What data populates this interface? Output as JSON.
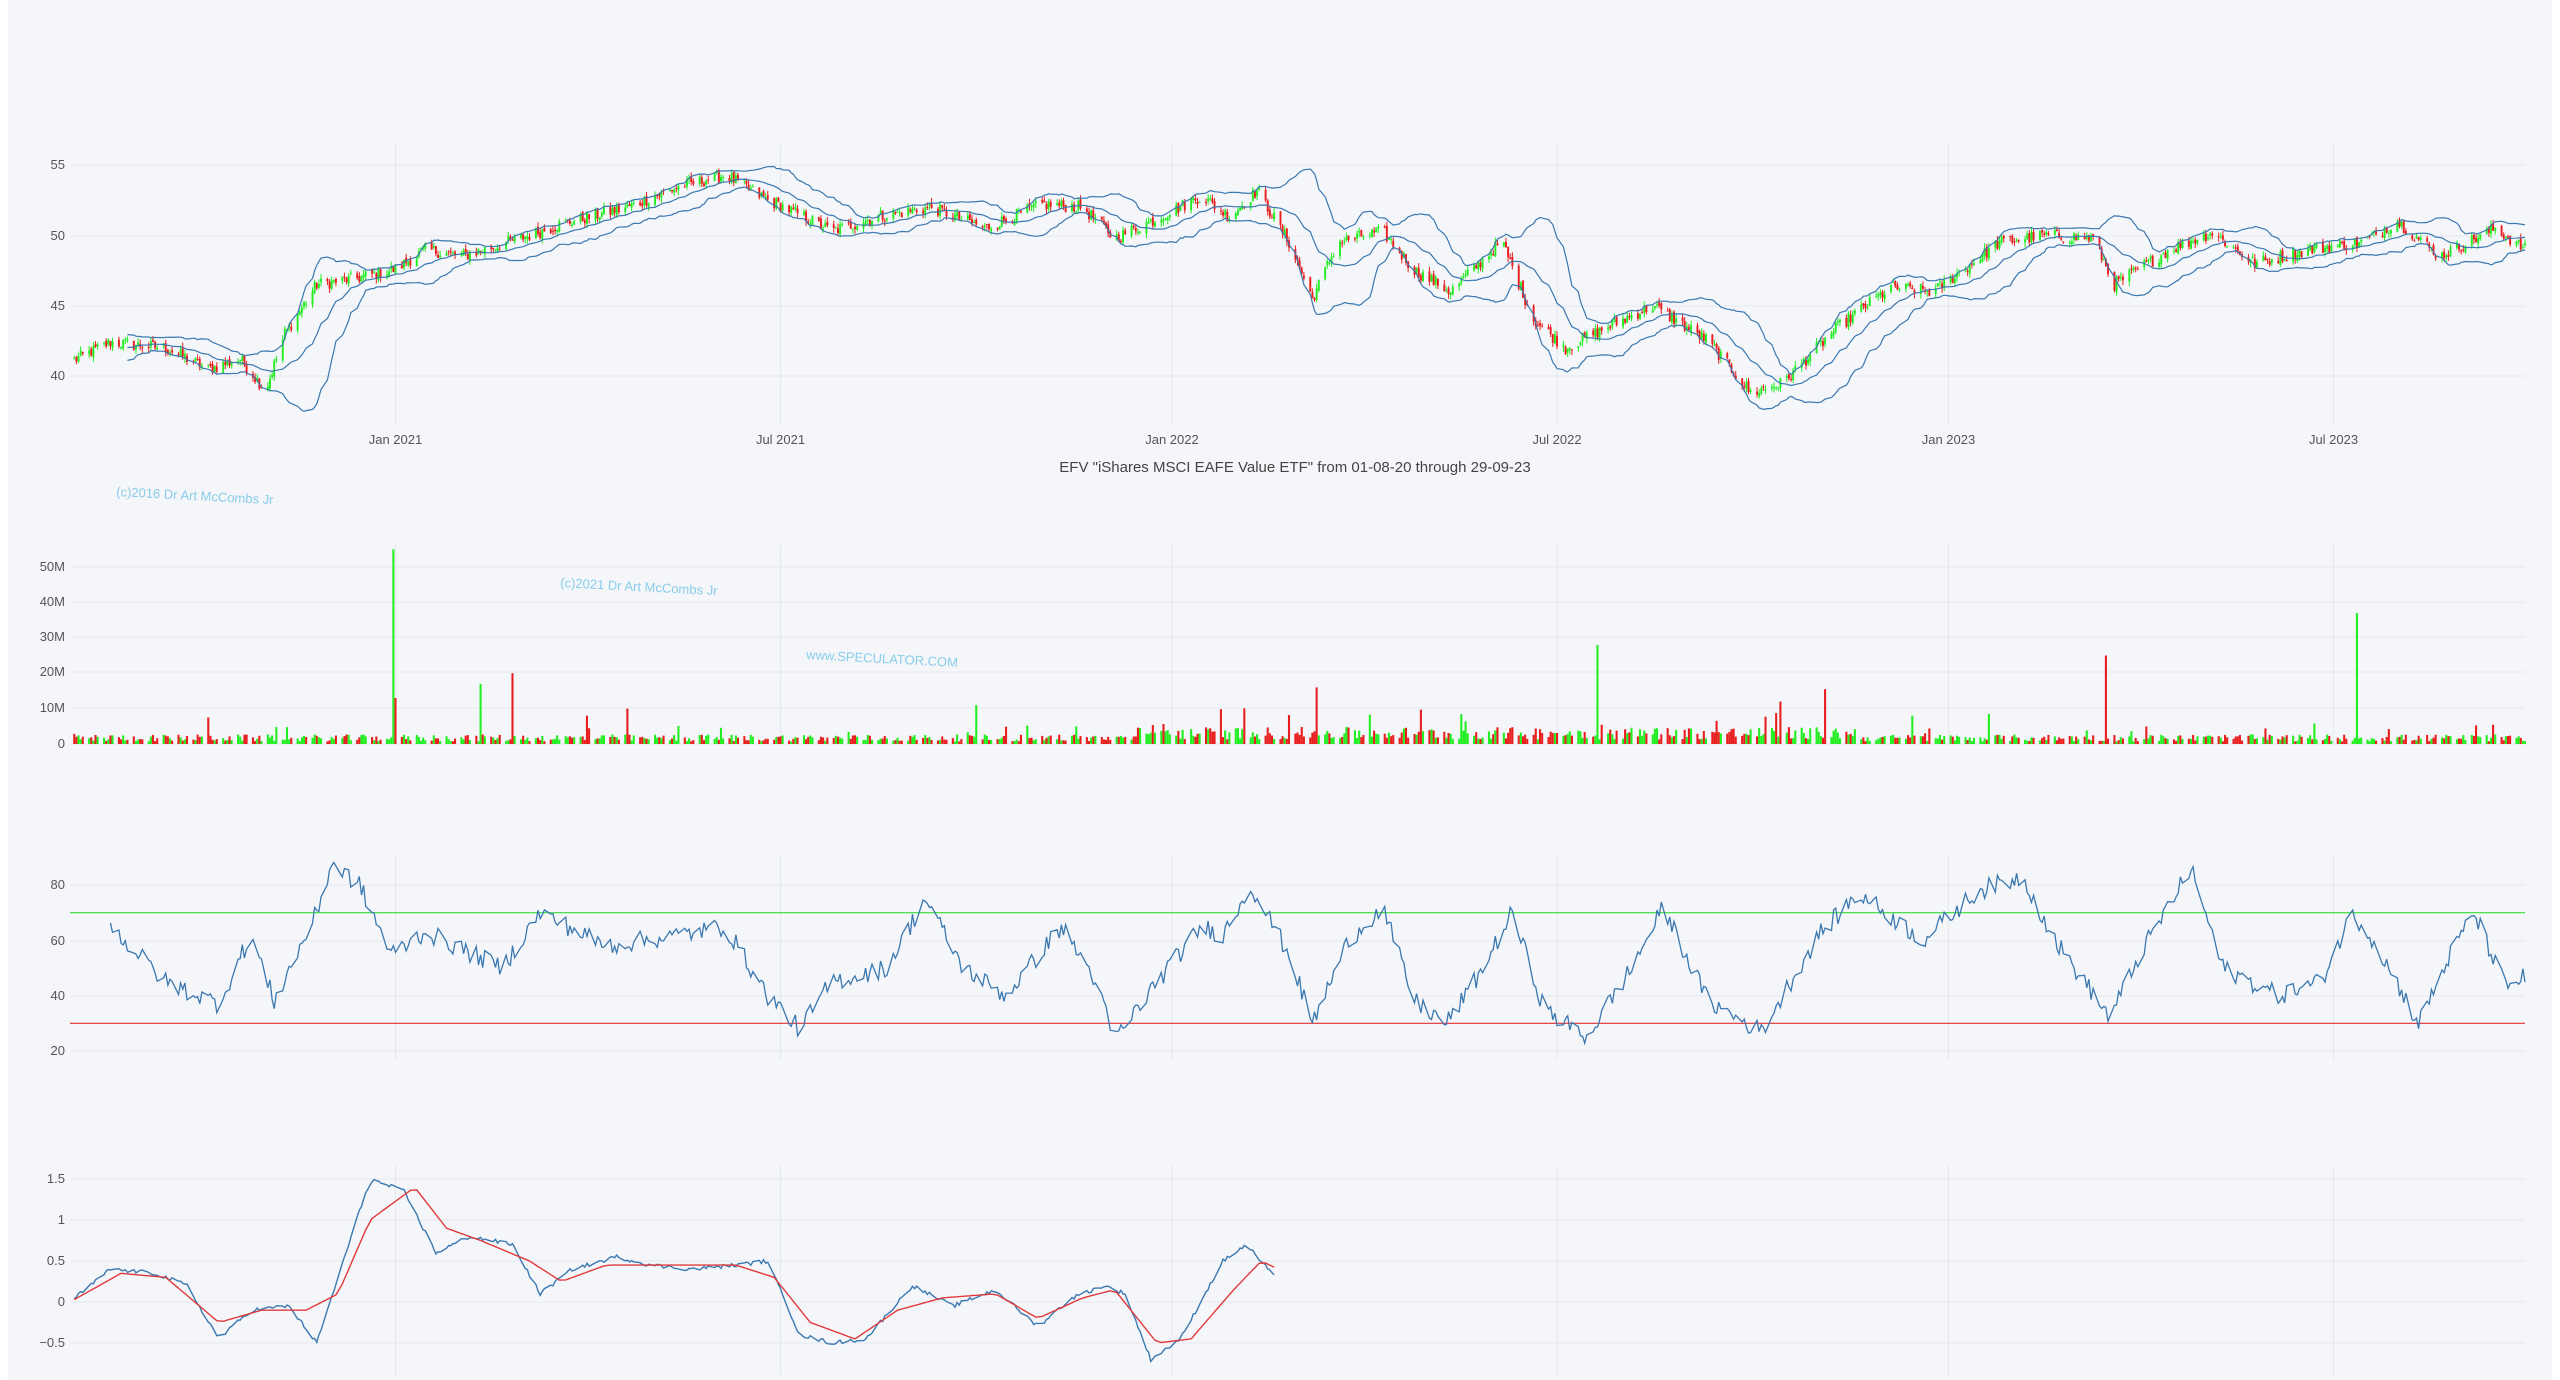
{
  "chart_data": {
    "type": "candlestick",
    "title": "EFV \"iShares MSCI EAFE Value ETF\" from 01-08-20 through 29-09-23",
    "x_ticks": [
      "Jan 2021",
      "Jul 2021",
      "Jan 2022",
      "Jul 2022",
      "Jan 2023",
      "Jul 2023"
    ],
    "watermarks": [
      "(c)2016 Dr Art McCombs Jr",
      "(c)2021 Dr Art McCombs Jr",
      "www.SPECULATOR.COM"
    ],
    "colors": {
      "up": "#22ee22",
      "down": "#e81e1e",
      "line": "#3a78b0",
      "signal": "#e03a3a",
      "band_upper": "#33dd33",
      "band_lower": "#e03030"
    },
    "panels": [
      {
        "id": "price",
        "type": "candlestick",
        "y_ticks": [
          "55",
          "50",
          "45",
          "40"
        ],
        "ylim": [
          36,
          56
        ],
        "overlays": [
          "bollinger-upper",
          "bollinger-middle",
          "bollinger-lower"
        ],
        "close_waypoints": [
          [
            "2020-08-01",
            41
          ],
          [
            "2020-08-20",
            42.4
          ],
          [
            "2020-09-15",
            42
          ],
          [
            "2020-10-05",
            40.5
          ],
          [
            "2020-10-20",
            41.2
          ],
          [
            "2020-11-01",
            39
          ],
          [
            "2020-11-10",
            43
          ],
          [
            "2020-11-25",
            46.5
          ],
          [
            "2020-12-15",
            47
          ],
          [
            "2021-01-01",
            47.6
          ],
          [
            "2021-01-15",
            49
          ],
          [
            "2021-02-01",
            48.5
          ],
          [
            "2021-02-25",
            49.6
          ],
          [
            "2021-03-20",
            50.8
          ],
          [
            "2021-04-20",
            52
          ],
          [
            "2021-05-15",
            53.5
          ],
          [
            "2021-06-05",
            54.3
          ],
          [
            "2021-06-25",
            52.5
          ],
          [
            "2021-07-10",
            51.5
          ],
          [
            "2021-07-25",
            50.3
          ],
          [
            "2021-08-15",
            51.3
          ],
          [
            "2021-09-10",
            52
          ],
          [
            "2021-10-05",
            50.5
          ],
          [
            "2021-11-01",
            52.2
          ],
          [
            "2021-11-20",
            52
          ],
          [
            "2021-12-05",
            49.8
          ],
          [
            "2021-12-25",
            51.2
          ],
          [
            "2022-01-15",
            52.8
          ],
          [
            "2022-01-28",
            51.3
          ],
          [
            "2022-02-10",
            53.2
          ],
          [
            "2022-02-25",
            49.5
          ],
          [
            "2022-03-08",
            45.5
          ],
          [
            "2022-03-20",
            49.5
          ],
          [
            "2022-04-10",
            50.3
          ],
          [
            "2022-04-25",
            47.5
          ],
          [
            "2022-05-12",
            46
          ],
          [
            "2022-06-05",
            49.6
          ],
          [
            "2022-06-20",
            44
          ],
          [
            "2022-07-05",
            42
          ],
          [
            "2022-07-25",
            43.5
          ],
          [
            "2022-08-15",
            45
          ],
          [
            "2022-09-10",
            42.5
          ],
          [
            "2022-09-30",
            38.8
          ],
          [
            "2022-10-15",
            39.5
          ],
          [
            "2022-11-10",
            43.5
          ],
          [
            "2022-12-05",
            46.3
          ],
          [
            "2022-12-25",
            46
          ],
          [
            "2023-01-25",
            49.5
          ],
          [
            "2023-02-15",
            50
          ],
          [
            "2023-03-10",
            49.8
          ],
          [
            "2023-03-20",
            46.5
          ],
          [
            "2023-04-15",
            49
          ],
          [
            "2023-05-05",
            50.2
          ],
          [
            "2023-05-25",
            48
          ],
          [
            "2023-06-20",
            49
          ],
          [
            "2023-07-15",
            49.5
          ],
          [
            "2023-07-31",
            51
          ],
          [
            "2023-08-20",
            48.5
          ],
          [
            "2023-09-15",
            50.5
          ],
          [
            "2023-09-29",
            49
          ]
        ]
      },
      {
        "id": "volume",
        "type": "bar",
        "y_ticks": [
          "50M",
          "40M",
          "30M",
          "20M",
          "10M",
          "0"
        ],
        "ylim": [
          0,
          52
        ],
        "y_unit": "M",
        "spikes": [
          [
            "2020-10-05",
            7.5,
            "down"
          ],
          [
            "2020-12-31",
            55,
            "up"
          ],
          [
            "2021-01-01",
            13,
            "down"
          ],
          [
            "2021-02-10",
            17,
            "up"
          ],
          [
            "2021-02-25",
            20,
            "down"
          ],
          [
            "2021-04-01",
            8,
            "down"
          ],
          [
            "2021-04-20",
            10,
            "down"
          ],
          [
            "2021-10-01",
            11,
            "up"
          ],
          [
            "2022-03-10",
            16,
            "down"
          ],
          [
            "2022-07-20",
            28,
            "up"
          ],
          [
            "2022-10-14",
            12,
            "down"
          ],
          [
            "2022-11-04",
            15.5,
            "down"
          ],
          [
            "2022-12-15",
            8,
            "up"
          ],
          [
            "2023-01-20",
            8.5,
            "up"
          ],
          [
            "2023-03-16",
            25,
            "down"
          ],
          [
            "2023-07-12",
            37,
            "up"
          ]
        ]
      },
      {
        "id": "rsi",
        "type": "line",
        "y_ticks": [
          "80",
          "60",
          "40",
          "20"
        ],
        "ylim": [
          18,
          93
        ],
        "reference_lines": [
          {
            "value": 70,
            "color": "#33dd33"
          },
          {
            "value": 30,
            "color": "#e03030"
          }
        ],
        "x_range": [
          "2020-08-20",
          "2023-09-29"
        ],
        "waypoints": [
          [
            "2020-08-20",
            65
          ],
          [
            "2020-09-15",
            45
          ],
          [
            "2020-10-10",
            37
          ],
          [
            "2020-10-25",
            62
          ],
          [
            "2020-11-05",
            38
          ],
          [
            "2020-11-25",
            70
          ],
          [
            "2020-12-02",
            88
          ],
          [
            "2020-12-15",
            80
          ],
          [
            "2020-12-30",
            55
          ],
          [
            "2021-01-15",
            63
          ],
          [
            "2021-02-20",
            50
          ],
          [
            "2021-03-10",
            70
          ],
          [
            "2021-04-10",
            58
          ],
          [
            "2021-05-15",
            62
          ],
          [
            "2021-06-05",
            65
          ],
          [
            "2021-06-25",
            40
          ],
          [
            "2021-07-10",
            28
          ],
          [
            "2021-07-25",
            45
          ],
          [
            "2021-08-20",
            50
          ],
          [
            "2021-09-07",
            75
          ],
          [
            "2021-09-25",
            50
          ],
          [
            "2021-10-15",
            40
          ],
          [
            "2021-11-10",
            65
          ],
          [
            "2021-11-25",
            47
          ],
          [
            "2021-12-05",
            24
          ],
          [
            "2021-12-25",
            45
          ],
          [
            "2022-01-15",
            65
          ],
          [
            "2022-01-25",
            62
          ],
          [
            "2022-02-07",
            80
          ],
          [
            "2022-02-25",
            55
          ],
          [
            "2022-03-08",
            30
          ],
          [
            "2022-03-25",
            60
          ],
          [
            "2022-04-10",
            72
          ],
          [
            "2022-04-25",
            38
          ],
          [
            "2022-05-10",
            30
          ],
          [
            "2022-05-25",
            47
          ],
          [
            "2022-06-10",
            70
          ],
          [
            "2022-06-25",
            35
          ],
          [
            "2022-07-15",
            25
          ],
          [
            "2022-08-05",
            50
          ],
          [
            "2022-08-20",
            72
          ],
          [
            "2022-09-10",
            38
          ],
          [
            "2022-10-05",
            27
          ],
          [
            "2022-11-01",
            62
          ],
          [
            "2022-11-20",
            77
          ],
          [
            "2022-12-20",
            60
          ],
          [
            "2023-01-15",
            78
          ],
          [
            "2023-02-05",
            83
          ],
          [
            "2023-02-20",
            60
          ],
          [
            "2023-03-18",
            32
          ],
          [
            "2023-04-01",
            55
          ],
          [
            "2023-04-25",
            86
          ],
          [
            "2023-05-10",
            50
          ],
          [
            "2023-06-05",
            40
          ],
          [
            "2023-06-25",
            45
          ],
          [
            "2023-07-10",
            70
          ],
          [
            "2023-07-20",
            60
          ],
          [
            "2023-08-10",
            30
          ],
          [
            "2023-08-25",
            55
          ],
          [
            "2023-09-05",
            70
          ],
          [
            "2023-09-20",
            43
          ],
          [
            "2023-09-29",
            47
          ]
        ]
      },
      {
        "id": "oscillator",
        "type": "line",
        "y_ticks": [
          "1.5",
          "1",
          "0.5",
          "0",
          "−0.5"
        ],
        "ylim": [
          -0.75,
          1.6
        ],
        "x_range": [
          "2020-08-01",
          "2022-02-20"
        ],
        "series": [
          {
            "color": "#3a78b0",
            "waypoints": [
              [
                "2020-08-01",
                0
              ],
              [
                "2020-08-20",
                0.4
              ],
              [
                "2020-09-10",
                0.35
              ],
              [
                "2020-09-25",
                0.2
              ],
              [
                "2020-10-10",
                -0.45
              ],
              [
                "2020-10-25",
                -0.1
              ],
              [
                "2020-11-12",
                -0.05
              ],
              [
                "2020-11-25",
                -0.5
              ],
              [
                "2020-12-05",
                0.3
              ],
              [
                "2020-12-20",
                1.5
              ],
              [
                "2021-01-05",
                1.35
              ],
              [
                "2021-01-20",
                0.6
              ],
              [
                "2021-02-05",
                0.8
              ],
              [
                "2021-02-25",
                0.7
              ],
              [
                "2021-03-10",
                0.1
              ],
              [
                "2021-03-25",
                0.4
              ],
              [
                "2021-04-15",
                0.55
              ],
              [
                "2021-05-01",
                0.45
              ],
              [
                "2021-05-20",
                0.4
              ],
              [
                "2021-06-10",
                0.45
              ],
              [
                "2021-06-25",
                0.5
              ],
              [
                "2021-07-10",
                -0.4
              ],
              [
                "2021-07-25",
                -0.5
              ],
              [
                "2021-08-10",
                -0.45
              ],
              [
                "2021-09-01",
                0.2
              ],
              [
                "2021-09-20",
                -0.05
              ],
              [
                "2021-10-10",
                0.15
              ],
              [
                "2021-10-30",
                -0.3
              ],
              [
                "2021-11-15",
                0.05
              ],
              [
                "2021-11-30",
                0.2
              ],
              [
                "2021-12-10",
                0.1
              ],
              [
                "2021-12-22",
                -0.7
              ],
              [
                "2022-01-05",
                -0.45
              ],
              [
                "2022-01-25",
                0.5
              ],
              [
                "2022-02-05",
                0.7
              ],
              [
                "2022-02-20",
                0.25
              ]
            ]
          },
          {
            "color": "#e03a3a",
            "waypoints": [
              [
                "2020-08-01",
                0
              ],
              [
                "2020-08-25",
                0.35
              ],
              [
                "2020-09-15",
                0.3
              ],
              [
                "2020-10-10",
                -0.25
              ],
              [
                "2020-10-30",
                -0.1
              ],
              [
                "2020-11-20",
                -0.1
              ],
              [
                "2020-12-05",
                0.1
              ],
              [
                "2020-12-20",
                1.0
              ],
              [
                "2021-01-10",
                1.4
              ],
              [
                "2021-01-25",
                0.9
              ],
              [
                "2021-02-10",
                0.75
              ],
              [
                "2021-03-05",
                0.5
              ],
              [
                "2021-03-20",
                0.25
              ],
              [
                "2021-04-10",
                0.45
              ],
              [
                "2021-05-05",
                0.45
              ],
              [
                "2021-06-10",
                0.45
              ],
              [
                "2021-06-28",
                0.3
              ],
              [
                "2021-07-15",
                -0.25
              ],
              [
                "2021-08-05",
                -0.45
              ],
              [
                "2021-08-25",
                -0.1
              ],
              [
                "2021-09-15",
                0.05
              ],
              [
                "2021-10-10",
                0.1
              ],
              [
                "2021-10-30",
                -0.2
              ],
              [
                "2021-11-20",
                0.05
              ],
              [
                "2021-12-05",
                0.15
              ],
              [
                "2021-12-25",
                -0.5
              ],
              [
                "2022-01-10",
                -0.45
              ],
              [
                "2022-01-30",
                0.15
              ],
              [
                "2022-02-12",
                0.5
              ],
              [
                "2022-02-20",
                0.4
              ]
            ]
          }
        ]
      }
    ]
  }
}
